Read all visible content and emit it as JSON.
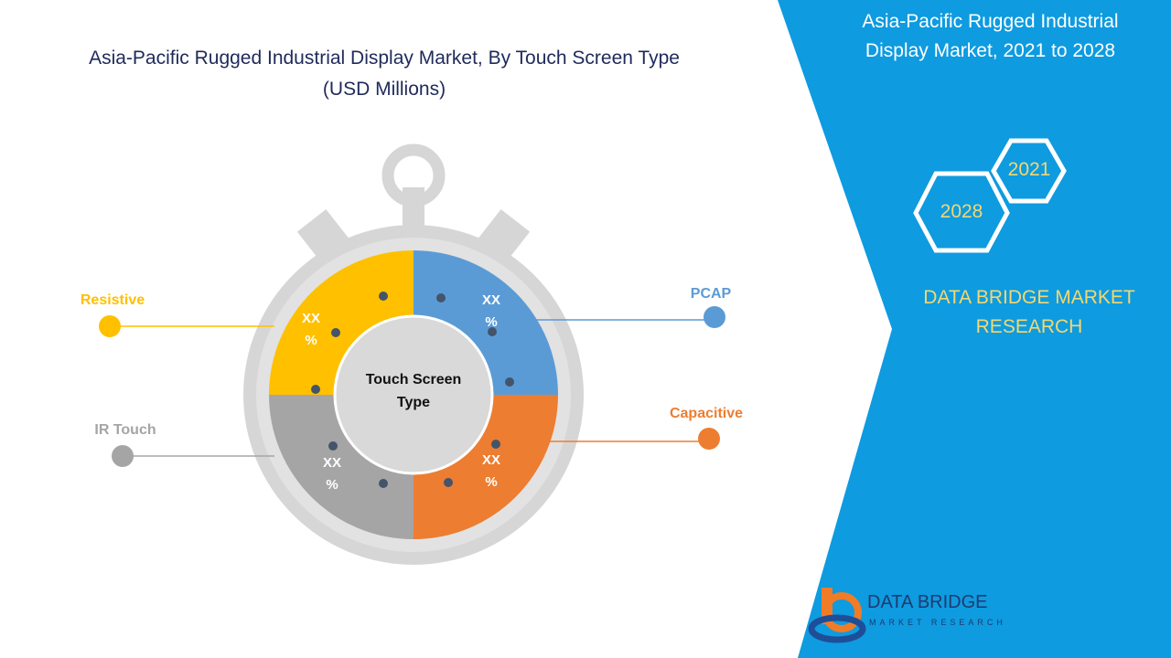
{
  "title": "Asia-Pacific Rugged Industrial Display Market, By Touch Screen Type",
  "subtitle": "(USD Millions)",
  "center_label": "Touch Screen Type",
  "segments": [
    {
      "name": "Resistive",
      "label": "XX %",
      "color": "#ffc000"
    },
    {
      "name": "PCAP",
      "label": "XX %",
      "color": "#5b9bd5"
    },
    {
      "name": "Capacitive",
      "label": "XX %",
      "color": "#ed7d31"
    },
    {
      "name": "IR Touch",
      "label": "XX %",
      "color": "#a5a5a5"
    }
  ],
  "side_panel": {
    "title": "Asia-Pacific Rugged Industrial Display Market, 2021 to 2028",
    "years": [
      "2021",
      "2028"
    ],
    "brand": "DATA BRIDGE MARKET RESEARCH"
  },
  "logo": {
    "name": "DATA BRIDGE",
    "tagline": "MARKET RESEARCH"
  }
}
